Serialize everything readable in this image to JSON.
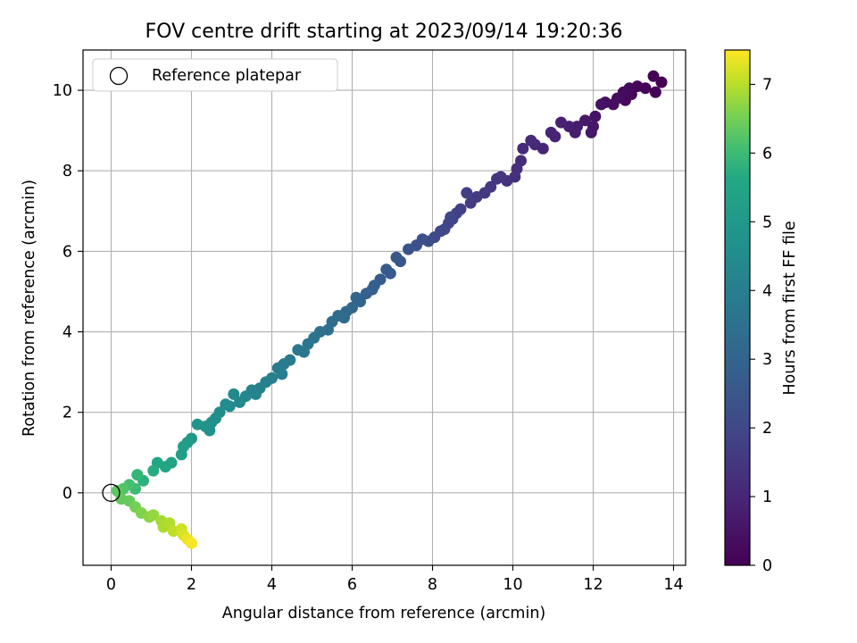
{
  "chart_data": {
    "type": "scatter",
    "title": "FOV centre drift starting at 2023/09/14 19:20:36",
    "xlabel": "Angular distance from reference (arcmin)",
    "ylabel": "Rotation from reference (arcmin)",
    "xlim": [
      -0.7,
      14.3
    ],
    "ylim": [
      -1.8,
      11.0
    ],
    "xticks": [
      0,
      2,
      4,
      6,
      8,
      10,
      12,
      14
    ],
    "yticks": [
      0,
      2,
      4,
      6,
      8,
      10
    ],
    "grid": true,
    "legend": {
      "placement": "top-left",
      "entries": [
        "Reference platepar"
      ]
    },
    "reference_point": {
      "x": 0,
      "y": 0,
      "marker": "open-circle"
    },
    "colorbar": {
      "label": "Hours from first FF file",
      "range": [
        0,
        7.5
      ],
      "ticks": [
        0,
        1,
        2,
        3,
        4,
        5,
        6,
        7
      ],
      "colormap": "viridis"
    },
    "points": [
      [
        13.7,
        10.2,
        0.0
      ],
      [
        13.5,
        10.35,
        0.02
      ],
      [
        13.55,
        9.95,
        0.05
      ],
      [
        13.3,
        10.05,
        0.08
      ],
      [
        13.1,
        10.1,
        0.12
      ],
      [
        12.95,
        9.9,
        0.16
      ],
      [
        12.9,
        10.05,
        0.2
      ],
      [
        12.8,
        9.75,
        0.24
      ],
      [
        12.75,
        9.95,
        0.28
      ],
      [
        12.6,
        9.8,
        0.32
      ],
      [
        12.5,
        9.65,
        0.36
      ],
      [
        12.3,
        9.7,
        0.4
      ],
      [
        12.2,
        9.65,
        0.45
      ],
      [
        12.05,
        9.35,
        0.5
      ],
      [
        12.0,
        9.1,
        0.55
      ],
      [
        11.95,
        8.95,
        0.6
      ],
      [
        11.8,
        9.25,
        0.65
      ],
      [
        11.6,
        9.1,
        0.7
      ],
      [
        11.55,
        8.95,
        0.75
      ],
      [
        11.4,
        9.1,
        0.8
      ],
      [
        11.2,
        9.2,
        0.85
      ],
      [
        11.05,
        8.85,
        0.9
      ],
      [
        10.95,
        8.95,
        0.95
      ],
      [
        10.75,
        8.55,
        1.0
      ],
      [
        10.55,
        8.65,
        1.05
      ],
      [
        10.45,
        8.75,
        1.1
      ],
      [
        10.25,
        8.55,
        1.15
      ],
      [
        10.2,
        8.25,
        1.2
      ],
      [
        10.1,
        8.05,
        1.25
      ],
      [
        10.05,
        7.85,
        1.3
      ],
      [
        9.85,
        7.75,
        1.35
      ],
      [
        9.7,
        7.85,
        1.4
      ],
      [
        9.6,
        7.8,
        1.45
      ],
      [
        9.45,
        7.6,
        1.5
      ],
      [
        9.3,
        7.45,
        1.55
      ],
      [
        9.1,
        7.35,
        1.6
      ],
      [
        8.95,
        7.2,
        1.65
      ],
      [
        8.85,
        7.45,
        1.7
      ],
      [
        8.7,
        7.05,
        1.75
      ],
      [
        8.6,
        6.95,
        1.8
      ],
      [
        8.5,
        6.8,
        1.85
      ],
      [
        8.4,
        6.7,
        1.9
      ],
      [
        8.45,
        6.85,
        1.95
      ],
      [
        8.3,
        6.55,
        2.0
      ],
      [
        8.2,
        6.5,
        2.05
      ],
      [
        8.05,
        6.35,
        2.1
      ],
      [
        7.9,
        6.25,
        2.2
      ],
      [
        7.75,
        6.3,
        2.25
      ],
      [
        7.6,
        6.15,
        2.3
      ],
      [
        7.4,
        6.05,
        2.4
      ],
      [
        7.2,
        5.75,
        2.5
      ],
      [
        7.1,
        5.85,
        2.55
      ],
      [
        6.95,
        5.45,
        2.6
      ],
      [
        6.85,
        5.55,
        2.65
      ],
      [
        6.7,
        5.3,
        2.7
      ],
      [
        6.55,
        5.15,
        2.8
      ],
      [
        6.5,
        5.05,
        2.85
      ],
      [
        6.35,
        4.95,
        2.9
      ],
      [
        6.2,
        4.75,
        3.0
      ],
      [
        6.1,
        4.85,
        3.05
      ],
      [
        6.0,
        4.6,
        3.1
      ],
      [
        5.85,
        4.5,
        3.2
      ],
      [
        5.8,
        4.35,
        3.25
      ],
      [
        5.65,
        4.4,
        3.3
      ],
      [
        5.5,
        4.25,
        3.35
      ],
      [
        5.4,
        4.05,
        3.4
      ],
      [
        5.2,
        4.0,
        3.5
      ],
      [
        5.05,
        3.85,
        3.6
      ],
      [
        4.9,
        3.7,
        3.65
      ],
      [
        4.8,
        3.5,
        3.7
      ],
      [
        4.65,
        3.55,
        3.75
      ],
      [
        4.45,
        3.3,
        3.8
      ],
      [
        4.3,
        3.2,
        3.85
      ],
      [
        4.15,
        3.1,
        3.9
      ],
      [
        4.25,
        2.95,
        3.95
      ],
      [
        4.0,
        2.85,
        4.0
      ],
      [
        3.85,
        2.75,
        4.05
      ],
      [
        3.7,
        2.6,
        4.1
      ],
      [
        3.6,
        2.45,
        4.15
      ],
      [
        3.5,
        2.55,
        4.2
      ],
      [
        3.35,
        2.4,
        4.3
      ],
      [
        3.2,
        2.25,
        4.35
      ],
      [
        3.05,
        2.45,
        4.4
      ],
      [
        2.95,
        2.15,
        4.45
      ],
      [
        2.85,
        2.2,
        4.5
      ],
      [
        2.7,
        2.0,
        4.55
      ],
      [
        2.6,
        1.85,
        4.6
      ],
      [
        2.5,
        1.75,
        4.65
      ],
      [
        2.45,
        1.55,
        4.7
      ],
      [
        2.35,
        1.65,
        4.75
      ],
      [
        2.15,
        1.7,
        4.8
      ],
      [
        2.0,
        1.35,
        5.0
      ],
      [
        1.9,
        1.25,
        5.1
      ],
      [
        1.8,
        1.15,
        5.2
      ],
      [
        1.75,
        0.95,
        5.3
      ],
      [
        1.5,
        0.75,
        5.4
      ],
      [
        1.35,
        0.65,
        5.5
      ],
      [
        1.15,
        0.75,
        5.6
      ],
      [
        1.05,
        0.55,
        5.7
      ],
      [
        0.8,
        0.3,
        5.8
      ],
      [
        0.65,
        0.45,
        5.9
      ],
      [
        0.6,
        0.1,
        6.0
      ],
      [
        0.45,
        0.2,
        6.1
      ],
      [
        0.3,
        0.1,
        6.2
      ],
      [
        0.15,
        0.05,
        6.3
      ],
      [
        0.25,
        -0.15,
        6.35
      ],
      [
        0.45,
        -0.2,
        6.4
      ],
      [
        0.6,
        -0.35,
        6.5
      ],
      [
        0.75,
        -0.5,
        6.6
      ],
      [
        0.95,
        -0.6,
        6.7
      ],
      [
        1.05,
        -0.55,
        6.75
      ],
      [
        1.25,
        -0.7,
        6.85
      ],
      [
        1.3,
        -0.85,
        6.9
      ],
      [
        1.45,
        -0.75,
        6.95
      ],
      [
        1.55,
        -0.95,
        7.05
      ],
      [
        1.75,
        -0.9,
        7.15
      ],
      [
        1.8,
        -1.05,
        7.25
      ],
      [
        1.9,
        -1.15,
        7.35
      ],
      [
        2.0,
        -1.25,
        7.45
      ]
    ]
  }
}
